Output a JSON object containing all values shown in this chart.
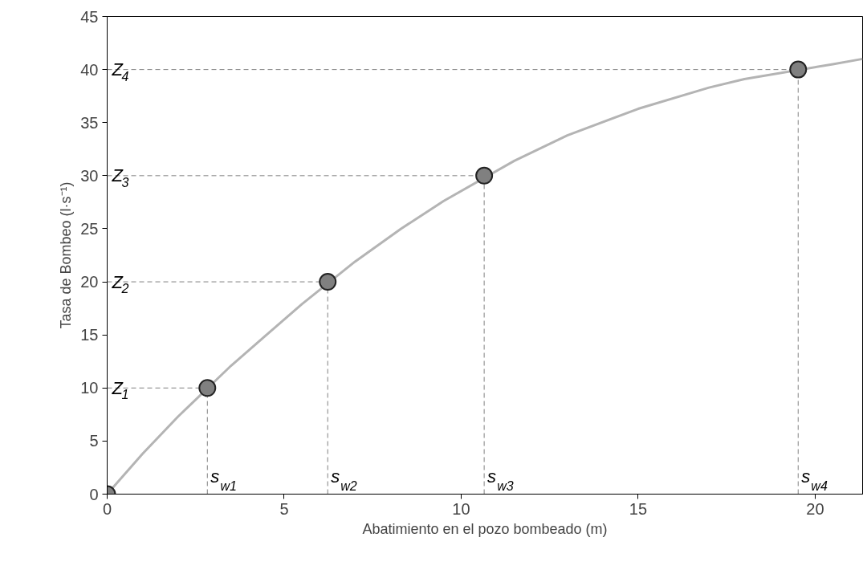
{
  "chart_data": {
    "type": "line",
    "xlabel": "Abatimiento en el pozo bombeado (m)",
    "ylabel": "Tasa de Bombeo (l·s⁻¹)",
    "xlim": [
      0,
      21.34
    ],
    "ylim": [
      0,
      45
    ],
    "xticks": [
      0,
      5,
      10,
      15,
      20
    ],
    "yticks": [
      0,
      5,
      10,
      15,
      20,
      25,
      30,
      35,
      40,
      45
    ],
    "grid": false,
    "series": [
      {
        "color": "#b4b4b4",
        "line_style": "solid",
        "marker": "none",
        "x": [
          0,
          1,
          2,
          3.5,
          4.5,
          5.5,
          7,
          8.3,
          9.5,
          11.5,
          13,
          15,
          17,
          18,
          20.5,
          21.34
        ],
        "values": [
          0,
          3.8,
          7.3,
          12.1,
          15,
          17.9,
          21.9,
          25,
          27.6,
          31.4,
          33.8,
          36.3,
          38.3,
          39.1,
          40.5,
          41
        ]
      },
      {
        "type": "line",
        "color": "#808080",
        "line_style": "dashed",
        "marker": "none",
        "x": [
          0,
          2.83
        ],
        "values": [
          10,
          10
        ]
      },
      {
        "type": "line",
        "color": "#808080",
        "line_style": "dashed",
        "marker": "none",
        "x": [
          0,
          6.23
        ],
        "values": [
          20,
          20
        ]
      },
      {
        "type": "line",
        "color": "#808080",
        "line_style": "dashed",
        "marker": "none",
        "x": [
          0,
          10.65
        ],
        "values": [
          30,
          30
        ]
      },
      {
        "type": "line",
        "color": "#808080",
        "line_style": "dashed",
        "marker": "none",
        "x": [
          0,
          19.52
        ],
        "values": [
          40,
          40
        ]
      },
      {
        "type": "line",
        "color": "#808080",
        "line_style": "dashed",
        "marker": "none",
        "x": [
          2.83,
          2.83
        ],
        "values": [
          0,
          10
        ]
      },
      {
        "type": "line",
        "color": "#808080",
        "line_style": "dashed",
        "marker": "none",
        "x": [
          6.23,
          6.23
        ],
        "values": [
          0,
          20
        ]
      },
      {
        "type": "line",
        "color": "#808080",
        "line_style": "dashed",
        "marker": "none",
        "x": [
          10.65,
          10.65
        ],
        "values": [
          0,
          30
        ]
      },
      {
        "type": "line",
        "color": "#808080",
        "line_style": "dashed",
        "marker": "none",
        "x": [
          19.52,
          19.52
        ],
        "values": [
          0,
          40
        ]
      },
      {
        "type": "scatter",
        "color": "#808080",
        "marker": "circle",
        "x": [
          0,
          2.83,
          6.23,
          10.65,
          19.52
        ],
        "values": [
          0,
          10,
          20,
          30,
          40
        ]
      }
    ],
    "annotations": [
      {
        "text": "Z$_{1}$",
        "x": 0,
        "y": 10
      },
      {
        "text": "Z$_{2}$",
        "x": 0,
        "y": 20
      },
      {
        "text": "Z$_{3}$",
        "x": 0,
        "y": 30
      },
      {
        "text": "Z$_{4}$",
        "x": 0,
        "y": 40
      },
      {
        "text": "s$_{w1}$",
        "x": 2.83,
        "y": 0
      },
      {
        "text": "s$_{w2}$",
        "x": 6.23,
        "y": 0
      },
      {
        "text": "s$_{w3}$",
        "x": 10.65,
        "y": 0
      },
      {
        "text": "s$_{w4}$",
        "x": 19.52,
        "y": 0
      }
    ]
  }
}
